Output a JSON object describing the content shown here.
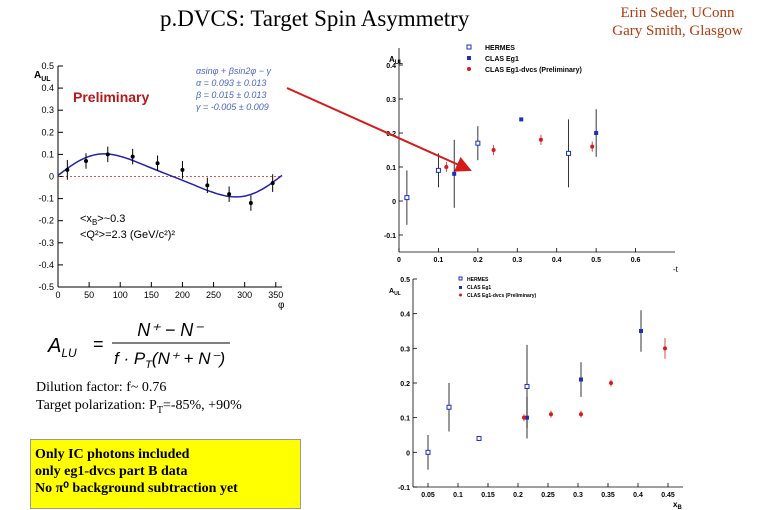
{
  "slide": {
    "title": "p.DVCS: Target Spin Asymmetry",
    "authors": [
      "Erin Seder, UConn",
      "Gary Smith, Glasgow"
    ],
    "dilution_label": "Dilution factor: f~ 0.76",
    "polarization_label": "Target polarization: P",
    "polarization_sub": "T",
    "polarization_value": "=-85%, +90%",
    "info_lines": [
      "Only IC photons included",
      "only eg1-dvcs part B data",
      "No π⁰ background subtraction yet"
    ],
    "colors": {
      "authors": "#b23a0e",
      "info_box": "#ffff00",
      "arrow": "#d61a1a",
      "fit": "#2222aa",
      "fit_labels": "#4a66c8",
      "clas": "#1c2fbf",
      "clas_dvcs": "#d61a1a",
      "hermes": "#1c2fbf"
    }
  },
  "fit_plot": {
    "ylabel": "A",
    "ylabel_sub": "UL",
    "xlabel": "φ",
    "preliminary": "Preliminary",
    "fit_text": [
      "αsinφ + βsin2φ − γ",
      "α = 0.093 ± 0.013",
      "β = 0.015 ± 0.013",
      "γ = -0.005 ± 0.009"
    ],
    "kin_line1": "<x",
    "kin_line1_sub": "B",
    "kin_line1_rest": ">~0.3",
    "kin_line2": "<Q²>=2.3 (GeV/c²)²",
    "formula": {
      "lhs": "A",
      "lhs_sub": "LU",
      "eq": "=",
      "num": "N⁺ − N⁻",
      "den_f": "f · P",
      "den_sub": "T",
      "den_paren": "(N⁺ + N⁻)"
    },
    "chart_data": {
      "type": "scatter",
      "xlabel": "φ",
      "ylabel": "A_UL",
      "xlim": [
        0,
        360
      ],
      "ylim": [
        -0.5,
        0.5
      ],
      "x_ticks": [
        0,
        50,
        100,
        150,
        200,
        250,
        300,
        350
      ],
      "y_ticks": [
        -0.5,
        -0.4,
        -0.3,
        -0.2,
        -0.1,
        0,
        0.1,
        0.2,
        0.3,
        0.4,
        0.5
      ],
      "points": [
        {
          "x": 15,
          "y": 0.03,
          "err": 0.045
        },
        {
          "x": 45,
          "y": 0.07,
          "err": 0.035
        },
        {
          "x": 80,
          "y": 0.1,
          "err": 0.035
        },
        {
          "x": 120,
          "y": 0.09,
          "err": 0.035
        },
        {
          "x": 160,
          "y": 0.06,
          "err": 0.035
        },
        {
          "x": 200,
          "y": 0.03,
          "err": 0.04
        },
        {
          "x": 240,
          "y": -0.04,
          "err": 0.035
        },
        {
          "x": 275,
          "y": -0.08,
          "err": 0.035
        },
        {
          "x": 310,
          "y": -0.12,
          "err": 0.035
        },
        {
          "x": 345,
          "y": -0.03,
          "err": 0.04
        }
      ],
      "fit": {
        "alpha": 0.093,
        "beta": 0.015,
        "gamma": -0.005
      },
      "grid": false
    }
  },
  "t_plot": {
    "ylabel": "A",
    "ylabel_sub": "UL",
    "xlabel": "-t",
    "chart_data": {
      "type": "scatter",
      "xlabel": "-t",
      "ylabel": "A_UL",
      "xlim": [
        0,
        0.7
      ],
      "ylim": [
        -0.15,
        0.45
      ],
      "x_ticks": [
        "0",
        "0.1",
        "0.2",
        "0.3",
        "0.4",
        "0.5",
        "0.6"
      ],
      "y_ticks": [
        "-0.1",
        "0",
        "0.1",
        "0.2",
        "0.3",
        "0.4"
      ],
      "legend_position": "top-right",
      "series": [
        {
          "name": "HERMES",
          "marker": "open-square",
          "points": [
            {
              "x": 0.02,
              "y": 0.01,
              "err": 0.08
            },
            {
              "x": 0.1,
              "y": 0.09,
              "err": 0.05
            },
            {
              "x": 0.2,
              "y": 0.17,
              "err": 0.05
            },
            {
              "x": 0.43,
              "y": 0.14,
              "err": 0.1
            }
          ]
        },
        {
          "name": "CLAS Eg1",
          "marker": "filled-square",
          "points": [
            {
              "x": 0.14,
              "y": 0.08,
              "err": 0.1
            },
            {
              "x": 0.31,
              "y": 0.24,
              "err": 0.0
            },
            {
              "x": 0.5,
              "y": 0.2,
              "err": 0.07
            }
          ]
        },
        {
          "name": "CLAS Eg1-dvcs (Preliminary)",
          "marker": "filled-circle",
          "points": [
            {
              "x": 0.12,
              "y": 0.1,
              "err": 0.015
            },
            {
              "x": 0.24,
              "y": 0.15,
              "err": 0.015
            },
            {
              "x": 0.36,
              "y": 0.18,
              "err": 0.015
            },
            {
              "x": 0.49,
              "y": 0.16,
              "err": 0.015
            }
          ]
        }
      ]
    }
  },
  "xb_plot": {
    "ylabel": "A",
    "ylabel_sub": "UL",
    "xlabel": "x",
    "xlabel_sub": "B",
    "chart_data": {
      "type": "scatter",
      "xlabel": "x_B",
      "ylabel": "A_UL",
      "xlim": [
        0.025,
        0.475
      ],
      "ylim": [
        -0.1,
        0.5
      ],
      "x_ticks": [
        "0.05",
        "0.1",
        "0.15",
        "0.2",
        "0.25",
        "0.3",
        "0.35",
        "0.4",
        "0.45"
      ],
      "y_ticks": [
        "-0.1",
        "0",
        "0.1",
        "0.2",
        "0.3",
        "0.4",
        "0.5"
      ],
      "legend_position": "top-right",
      "series": [
        {
          "name": "HERMES",
          "marker": "open-square",
          "points": [
            {
              "x": 0.05,
              "y": 0.0,
              "err": 0.05
            },
            {
              "x": 0.085,
              "y": 0.13,
              "err": 0.07
            },
            {
              "x": 0.135,
              "y": 0.04,
              "err": 0.0
            },
            {
              "x": 0.215,
              "y": 0.19,
              "err": 0.12
            }
          ]
        },
        {
          "name": "CLAS Eg1",
          "marker": "filled-square",
          "points": [
            {
              "x": 0.215,
              "y": 0.1,
              "err": 0.06
            },
            {
              "x": 0.305,
              "y": 0.21,
              "err": 0.05
            },
            {
              "x": 0.405,
              "y": 0.35,
              "err": 0.06
            }
          ]
        },
        {
          "name": "CLAS Eg1-dvcs (Preliminary)",
          "marker": "filled-circle",
          "points": [
            {
              "x": 0.21,
              "y": 0.1,
              "err": 0.01
            },
            {
              "x": 0.255,
              "y": 0.11,
              "err": 0.01
            },
            {
              "x": 0.305,
              "y": 0.11,
              "err": 0.01
            },
            {
              "x": 0.355,
              "y": 0.2,
              "err": 0.01
            },
            {
              "x": 0.445,
              "y": 0.3,
              "err": 0.03
            }
          ]
        }
      ]
    }
  }
}
